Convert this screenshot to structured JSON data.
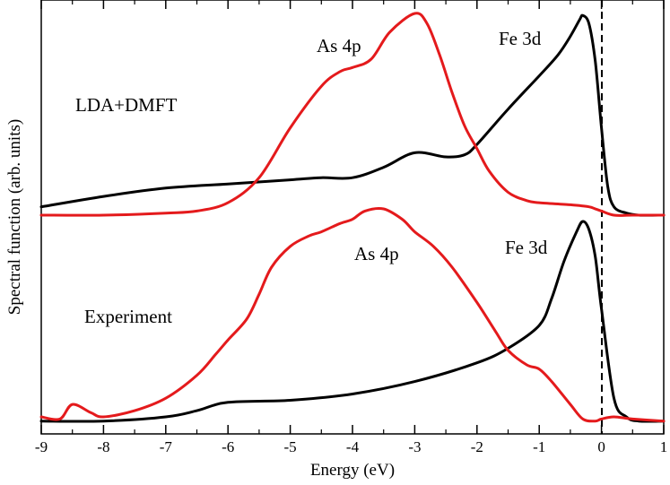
{
  "chart_data": {
    "type": "line",
    "title": "",
    "xlabel": "Energy (eV)",
    "ylabel": "Spectral function (arb. units)",
    "xlim": [
      -9,
      1
    ],
    "x_ticks": [
      -9,
      -8,
      -7,
      -6,
      -5,
      -4,
      -3,
      -2,
      -1,
      0,
      1
    ],
    "x_tick_labels": [
      "-9",
      "-8",
      "-7",
      "-6",
      "-5",
      "-4",
      "-3",
      "-2",
      "-1",
      "0",
      "1"
    ],
    "ylim": [
      0,
      2
    ],
    "y_ticks_labeled": false,
    "fermi_level": 0,
    "annotations": {
      "panel_top": "LDA+DMFT",
      "panel_bottom": "Experiment",
      "as_top": "As 4p",
      "fe_top": "Fe 3d",
      "as_bottom": "As 4p",
      "fe_bottom": "Fe 3d"
    },
    "series": [
      {
        "name": "LDA+DMFT Fe 3d",
        "color": "#000000",
        "x": [
          -9.0,
          -8.0,
          -7.0,
          -6.0,
          -5.0,
          -4.5,
          -4.0,
          -3.5,
          -3.0,
          -2.5,
          -2.2,
          -2.0,
          -1.5,
          -1.0,
          -0.7,
          -0.5,
          -0.35,
          -0.3,
          -0.2,
          -0.1,
          0.0,
          0.1,
          0.2,
          0.4,
          0.6,
          1.0
        ],
        "y": [
          1.04,
          1.09,
          1.13,
          1.15,
          1.17,
          1.18,
          1.18,
          1.23,
          1.3,
          1.28,
          1.29,
          1.34,
          1.51,
          1.67,
          1.77,
          1.86,
          1.94,
          1.96,
          1.92,
          1.74,
          1.42,
          1.14,
          1.04,
          1.01,
          1.0,
          1.0
        ]
      },
      {
        "name": "LDA+DMFT As 4p",
        "color": "#e41a1c",
        "x": [
          -9.0,
          -8.0,
          -7.0,
          -6.5,
          -6.0,
          -5.5,
          -5.0,
          -4.5,
          -4.2,
          -4.0,
          -3.7,
          -3.4,
          -3.0,
          -2.8,
          -2.6,
          -2.4,
          -2.2,
          -2.0,
          -1.8,
          -1.5,
          -1.2,
          -1.0,
          -0.5,
          -0.2,
          -0.1,
          0.0,
          0.2,
          0.5,
          1.0
        ],
        "y": [
          1.0,
          1.0,
          1.01,
          1.02,
          1.06,
          1.18,
          1.42,
          1.62,
          1.69,
          1.71,
          1.75,
          1.88,
          1.97,
          1.92,
          1.77,
          1.59,
          1.43,
          1.32,
          1.21,
          1.11,
          1.07,
          1.06,
          1.05,
          1.04,
          1.03,
          1.02,
          1.0,
          1.0,
          1.0
        ]
      },
      {
        "name": "Experiment Fe 3d",
        "color": "#000000",
        "x": [
          -9.0,
          -8.0,
          -7.0,
          -6.5,
          -6.0,
          -5.0,
          -4.0,
          -3.0,
          -2.0,
          -1.5,
          -1.0,
          -0.8,
          -0.6,
          -0.4,
          -0.3,
          -0.2,
          -0.1,
          0.0,
          0.2,
          0.4,
          0.6,
          1.0
        ],
        "y": [
          0.01,
          0.01,
          0.03,
          0.06,
          0.1,
          0.11,
          0.14,
          0.2,
          0.29,
          0.36,
          0.47,
          0.6,
          0.78,
          0.92,
          0.97,
          0.93,
          0.8,
          0.55,
          0.12,
          0.03,
          0.01,
          0.01
        ]
      },
      {
        "name": "Experiment As 4p",
        "color": "#e41a1c",
        "x": [
          -9.0,
          -8.7,
          -8.5,
          -8.2,
          -8.0,
          -7.5,
          -7.0,
          -6.5,
          -6.2,
          -6.0,
          -5.7,
          -5.5,
          -5.3,
          -5.0,
          -4.7,
          -4.5,
          -4.2,
          -4.0,
          -3.8,
          -3.5,
          -3.2,
          -3.0,
          -2.7,
          -2.4,
          -2.0,
          -1.7,
          -1.5,
          -1.2,
          -1.0,
          -0.8,
          -0.5,
          -0.3,
          -0.1,
          0.0,
          0.2,
          0.5,
          1.0
        ],
        "y": [
          0.03,
          0.02,
          0.09,
          0.05,
          0.03,
          0.06,
          0.12,
          0.23,
          0.33,
          0.4,
          0.5,
          0.62,
          0.75,
          0.85,
          0.9,
          0.92,
          0.96,
          0.98,
          1.02,
          1.03,
          0.98,
          0.92,
          0.85,
          0.75,
          0.58,
          0.44,
          0.35,
          0.28,
          0.26,
          0.2,
          0.09,
          0.02,
          0.01,
          0.02,
          0.03,
          0.02,
          0.01
        ]
      }
    ]
  }
}
